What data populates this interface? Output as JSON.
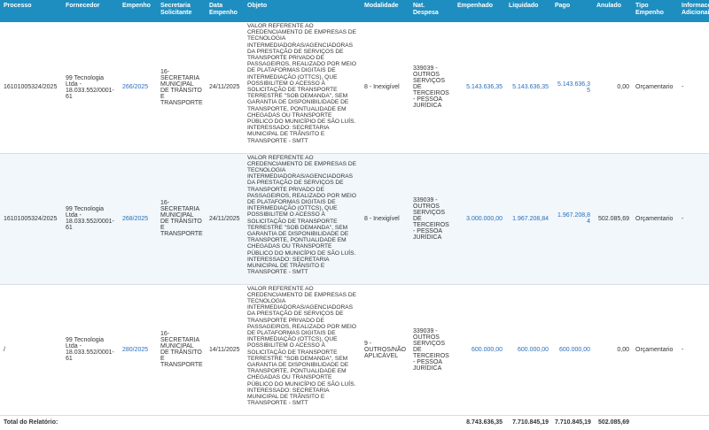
{
  "table": {
    "headers": [
      "Processo",
      "Fornecedor",
      "Empenho",
      "Secretaria Solicitante",
      "Data Empenho",
      "Objeto",
      "Modalidade",
      "Nat. Despesa",
      "Empenhado",
      "Liquidado",
      "Pago",
      "Anulado",
      "Tipo Empenho",
      "Informacoes Adicionais"
    ],
    "rows": [
      {
        "processo": "16101005324/2025",
        "fornecedor": "99 Tecnologia Ltda - 18.033.552/0001-61",
        "empenho": "266/2025",
        "secretaria": "16-SECRETARIA MUNICIPAL DE TRÂNSITO E TRANSPORTE",
        "data": "24/11/2025",
        "objeto": "VALOR REFERENTE AO CREDENCIAMENTO DE EMPRESAS DE TECNOLOGIA INTERMEDIADORAS/AGENCIADORAS DA PRESTAÇÃO DE SERVIÇOS DE TRANSPORTE PRIVADO DE PASSAGEIROS, REALIZADO POR MEIO DE PLATAFORMAS DIGITAIS DE INTERMEDIAÇÃO (OTTCS), QUE POSSIBILITEM O ACESSO À SOLICITAÇÃO DE TRANSPORTE TERRESTRE \"SOB DEMANDA\", SEM GARANTIA DE DISPONIBILIDADE DE TRANSPORTE, PONTUALIDADE EM CHEGADAS OU TRANSPORTE PÚBLICO DO MUNICÍPIO DE SÃO LUÍS. INTERESSADO: SECRETARIA MUNICIPAL DE TRÂNSITO E TRANSPORTE - SMTT",
        "modalidade": "8 - Inexigível",
        "nat_despesa": "339039 - OUTROS SERVIÇOS DE TERCEIROS - PESSOA JURÍDICA",
        "empenhado": "5.143.636,35",
        "liquidado": "5.143.636,35",
        "pago": "5.143.636,35",
        "anulado": "0,00",
        "tipo": "Orçamentario",
        "info": "-"
      },
      {
        "processo": "16101005324/2025",
        "fornecedor": "99 Tecnologia Ltda - 18.033.552/0001-61",
        "empenho": "268/2025",
        "secretaria": "16-SECRETARIA MUNICIPAL DE TRÂNSITO E TRANSPORTE",
        "data": "24/11/2025",
        "objeto": "VALOR REFERENTE AO CREDENCIAMENTO DE EMPRESAS DE TECNOLOGIA INTERMEDIADORAS/AGENCIADORAS DA PRESTAÇÃO DE SERVIÇOS DE TRANSPORTE PRIVADO DE PASSAGEIROS, REALIZADO POR MEIO DE PLATAFORMAS DIGITAIS DE INTERMEDIAÇÃO (OTTCS), QUE POSSIBILITEM O ACESSO À SOLICITAÇÃO DE TRANSPORTE TERRESTRE \"SOB DEMANDA\", SEM GARANTIA DE DISPONIBILIDADE DE TRANSPORTE, PONTUALIDADE EM CHEGADAS OU TRANSPORTE PÚBLICO DO MUNICÍPIO DE SÃO LUÍS. INTERESSADO: SECRETARIA MUNICIPAL DE TRÂNSITO E TRANSPORTE - SMTT",
        "modalidade": "8 - Inexigível",
        "nat_despesa": "339039 - OUTROS SERVIÇOS DE TERCEIROS - PESSOA JURÍDICA",
        "empenhado": "3.000.000,00",
        "liquidado": "1.967.208,84",
        "pago": "1.967.208,84",
        "anulado": "502.085,69",
        "tipo": "Orçamentario",
        "info": "-"
      },
      {
        "processo": "/",
        "fornecedor": "99 Tecnologia Ltda - 18.033.552/0001-61",
        "empenho": "280/2025",
        "secretaria": "16-SECRETARIA MUNICIPAL DE TRÂNSITO E TRANSPORTE",
        "data": "14/11/2025",
        "objeto": "VALOR REFERENTE AO CREDENCIAMENTO DE EMPRESAS DE TECNOLOGIA INTERMEDIADORAS/AGENCIADORAS DA PRESTAÇÃO DE SERVIÇOS DE TRANSPORTE PRIVADO DE PASSAGEIROS, REALIZADO POR MEIO DE PLATAFORMAS DIGITAIS DE INTERMEDIAÇÃO (OTTCS), QUE POSSIBILITEM O ACESSO À SOLICITAÇÃO DE TRANSPORTE TERRESTRE \"SOB DEMANDA\", SEM GARANTIA DE DISPONIBILIDADE DE TRANSPORTE, PONTUALIDADE EM CHEGADAS OU TRANSPORTE PÚBLICO DO MUNICÍPIO DE SÃO LUÍS. INTERESSADO: SECRETARIA MUNICIPAL DE TRÂNSITO E TRANSPORTE - SMTT",
        "modalidade": "9 - OUTROS/NÃO APLICÁVEL",
        "nat_despesa": "339039 - OUTROS SERVIÇOS DE TERCEIROS - PESSOA JURÍDICA",
        "empenhado": "600.000,00",
        "liquidado": "600.000,00",
        "pago": "600.000,00",
        "anulado": "0,00",
        "tipo": "Orçamentario",
        "info": "-"
      }
    ],
    "total": {
      "label": "Total do Relatório:",
      "empenhado": "8.743.636,35",
      "liquidado": "7.710.845,19",
      "pago": "7.710.845,19",
      "anulado": "502.085,69"
    }
  }
}
